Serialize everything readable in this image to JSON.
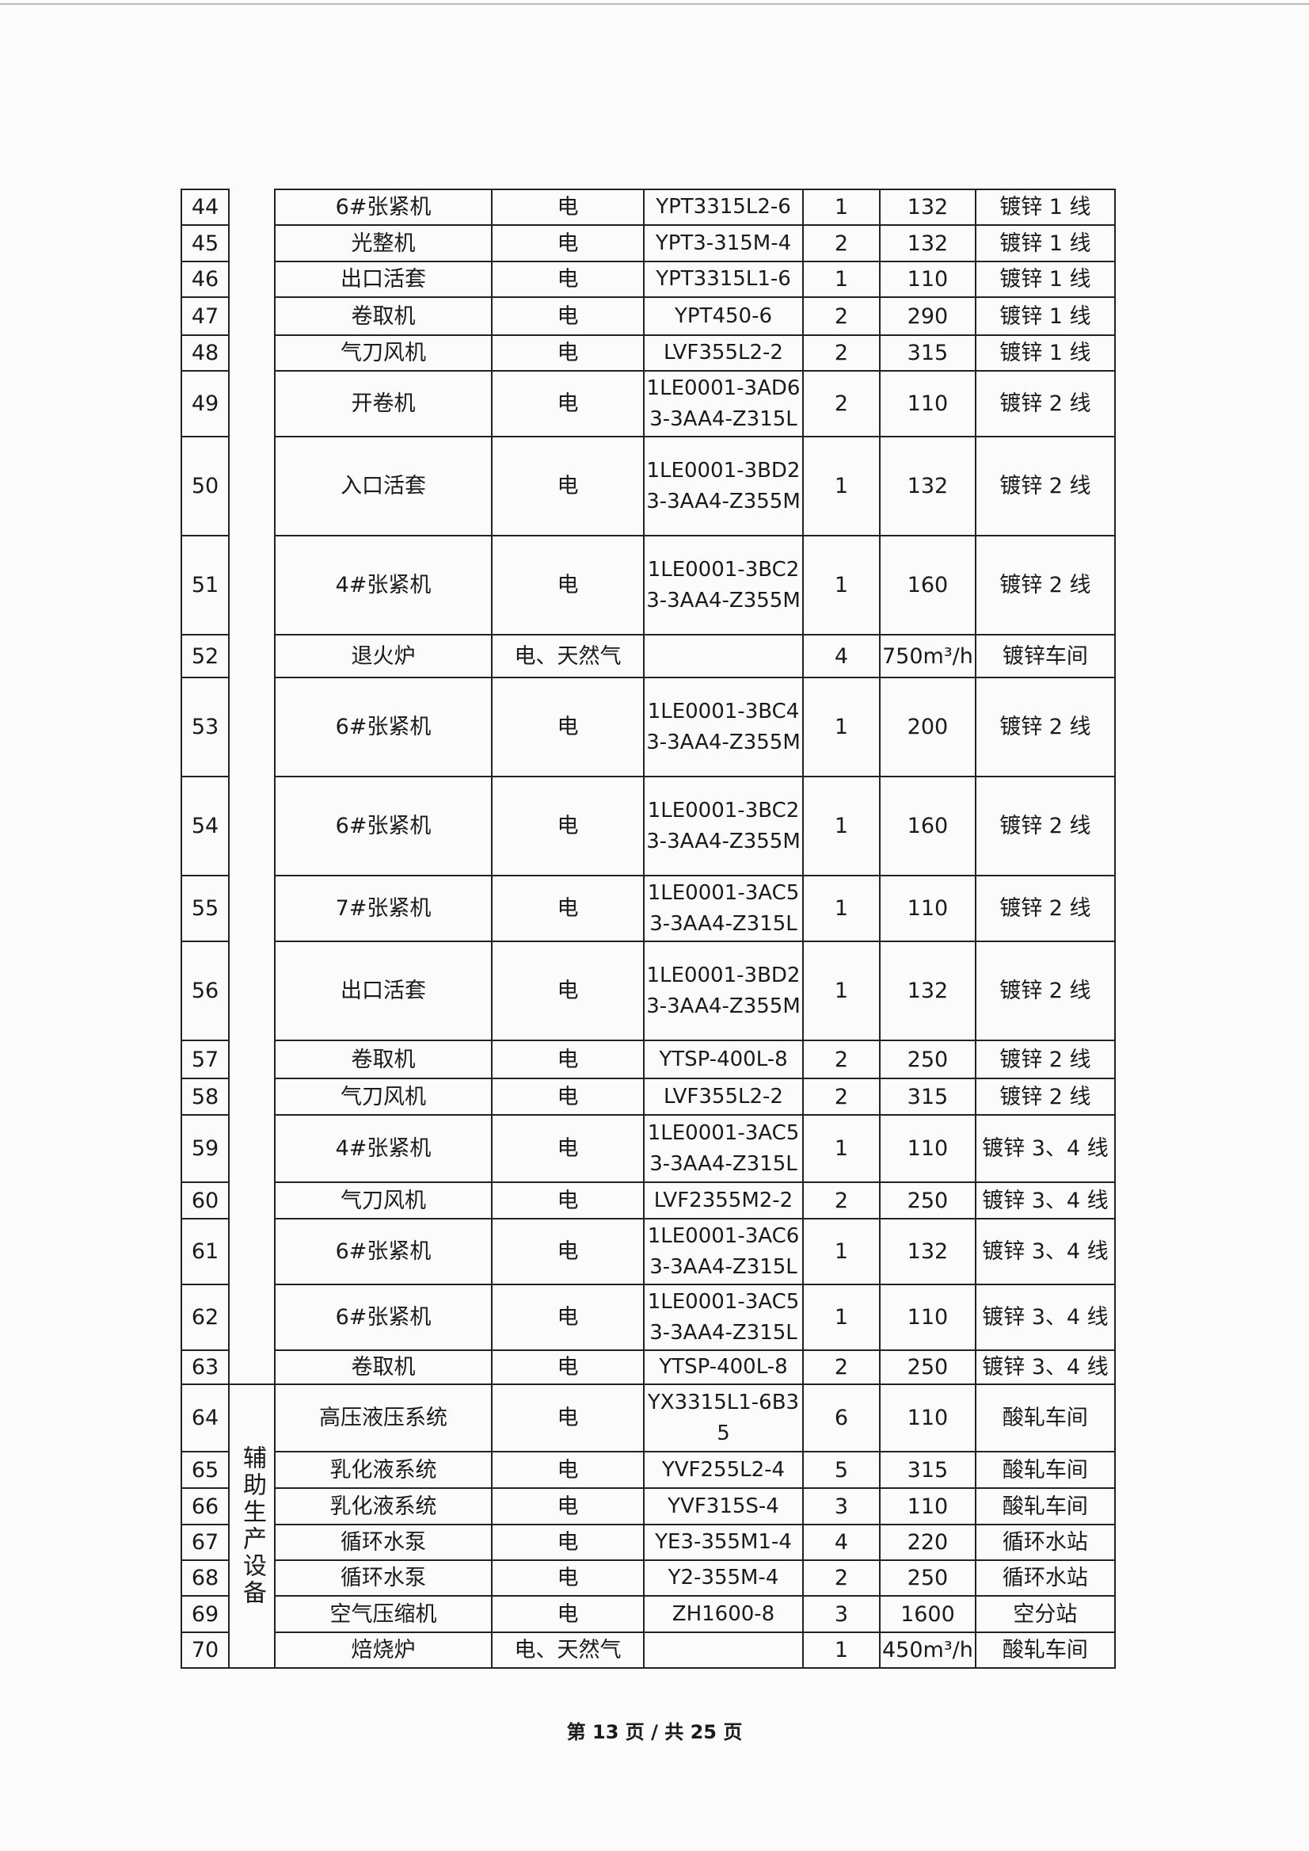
{
  "table": {
    "aux_category": "辅助生产设备",
    "rows": [
      {
        "no": "44",
        "name": "6#张紧机",
        "energy": "电",
        "model": "YPT3315L2-6",
        "qty": "1",
        "power": "132",
        "location": "镀锌 1 线"
      },
      {
        "no": "45",
        "name": "光整机",
        "energy": "电",
        "model": "YPT3-315M-4",
        "qty": "2",
        "power": "132",
        "location": "镀锌 1 线"
      },
      {
        "no": "46",
        "name": "出口活套",
        "energy": "电",
        "model": "YPT3315L1-6",
        "qty": "1",
        "power": "110",
        "location": "镀锌 1 线"
      },
      {
        "no": "47",
        "name": "卷取机",
        "energy": "电",
        "model": "YPT450-6",
        "qty": "2",
        "power": "290",
        "location": "镀锌 1 线"
      },
      {
        "no": "48",
        "name": "气刀风机",
        "energy": "电",
        "model": "LVF355L2-2",
        "qty": "2",
        "power": "315",
        "location": "镀锌 1 线"
      },
      {
        "no": "49",
        "name": "开卷机",
        "energy": "电",
        "model": "1LE0001-3AD63-3AA4-Z315L",
        "qty": "2",
        "power": "110",
        "location": "镀锌 2 线"
      },
      {
        "no": "50",
        "name": "入口活套",
        "energy": "电",
        "model": "1LE0001-3BD23-3AA4-Z355M",
        "qty": "1",
        "power": "132",
        "location": "镀锌 2 线"
      },
      {
        "no": "51",
        "name": "4#张紧机",
        "energy": "电",
        "model": "1LE0001-3BC23-3AA4-Z355M",
        "qty": "1",
        "power": "160",
        "location": "镀锌 2 线"
      },
      {
        "no": "52",
        "name": "退火炉",
        "energy": "电、天然气",
        "model": "",
        "qty": "4",
        "power": "750m³/h",
        "location": "镀锌车间"
      },
      {
        "no": "53",
        "name": "6#张紧机",
        "energy": "电",
        "model": "1LE0001-3BC43-3AA4-Z355M",
        "qty": "1",
        "power": "200",
        "location": "镀锌 2 线"
      },
      {
        "no": "54",
        "name": "6#张紧机",
        "energy": "电",
        "model": "1LE0001-3BC23-3AA4-Z355M",
        "qty": "1",
        "power": "160",
        "location": "镀锌 2 线"
      },
      {
        "no": "55",
        "name": "7#张紧机",
        "energy": "电",
        "model": "1LE0001-3AC53-3AA4-Z315L",
        "qty": "1",
        "power": "110",
        "location": "镀锌 2 线"
      },
      {
        "no": "56",
        "name": "出口活套",
        "energy": "电",
        "model": "1LE0001-3BD23-3AA4-Z355M",
        "qty": "1",
        "power": "132",
        "location": "镀锌 2 线"
      },
      {
        "no": "57",
        "name": "卷取机",
        "energy": "电",
        "model": "YTSP-400L-8",
        "qty": "2",
        "power": "250",
        "location": "镀锌 2 线"
      },
      {
        "no": "58",
        "name": "气刀风机",
        "energy": "电",
        "model": "LVF355L2-2",
        "qty": "2",
        "power": "315",
        "location": "镀锌 2 线"
      },
      {
        "no": "59",
        "name": "4#张紧机",
        "energy": "电",
        "model": "1LE0001-3AC53-3AA4-Z315L",
        "qty": "1",
        "power": "110",
        "location": "镀锌 3、4 线"
      },
      {
        "no": "60",
        "name": "气刀风机",
        "energy": "电",
        "model": "LVF2355M2-2",
        "qty": "2",
        "power": "250",
        "location": "镀锌 3、4 线"
      },
      {
        "no": "61",
        "name": "6#张紧机",
        "energy": "电",
        "model": "1LE0001-3AC63-3AA4-Z315L",
        "qty": "1",
        "power": "132",
        "location": "镀锌 3、4 线"
      },
      {
        "no": "62",
        "name": "6#张紧机",
        "energy": "电",
        "model": "1LE0001-3AC53-3AA4-Z315L",
        "qty": "1",
        "power": "110",
        "location": "镀锌 3、4 线"
      },
      {
        "no": "63",
        "name": "卷取机",
        "energy": "电",
        "model": "YTSP-400L-8",
        "qty": "2",
        "power": "250",
        "location": "镀锌 3、4 线"
      },
      {
        "no": "64",
        "name": "高压液压系统",
        "energy": "电",
        "model": "YX3315L1-6B35",
        "qty": "6",
        "power": "110",
        "location": "酸轧车间"
      },
      {
        "no": "65",
        "name": "乳化液系统",
        "energy": "电",
        "model": "YVF255L2-4",
        "qty": "5",
        "power": "315",
        "location": "酸轧车间"
      },
      {
        "no": "66",
        "name": "乳化液系统",
        "energy": "电",
        "model": "YVF315S-4",
        "qty": "3",
        "power": "110",
        "location": "酸轧车间"
      },
      {
        "no": "67",
        "name": "循环水泵",
        "energy": "电",
        "model": "YE3-355M1-4",
        "qty": "4",
        "power": "220",
        "location": "循环水站"
      },
      {
        "no": "68",
        "name": "循环水泵",
        "energy": "电",
        "model": "Y2-355M-4",
        "qty": "2",
        "power": "250",
        "location": "循环水站"
      },
      {
        "no": "69",
        "name": "空气压缩机",
        "energy": "电",
        "model": "ZH1600-8",
        "qty": "3",
        "power": "1600",
        "location": "空分站"
      },
      {
        "no": "70",
        "name": "焙烧炉",
        "energy": "电、天然气",
        "model": "",
        "qty": "1",
        "power": "450m³/h",
        "location": "酸轧车间"
      }
    ]
  },
  "footer": {
    "page_label": "第 13 页 / 共 25 页"
  }
}
